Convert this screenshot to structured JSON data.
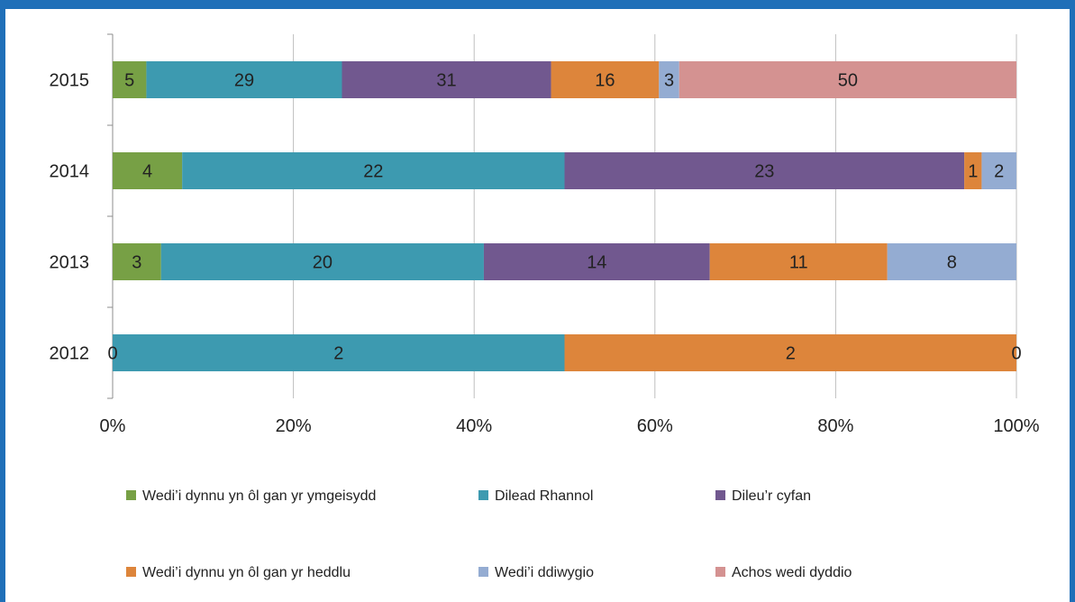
{
  "chart_data": {
    "type": "bar",
    "orientation": "horizontal",
    "stacking": "percent",
    "title": "",
    "xlabel": "",
    "ylabel": "",
    "categories": [
      "2012",
      "2013",
      "2014",
      "2015"
    ],
    "xlim": [
      0,
      100
    ],
    "x_ticks": [
      "0%",
      "20%",
      "40%",
      "60%",
      "80%",
      "100%"
    ],
    "grid": "vertical",
    "legend_position": "bottom",
    "data_labels": true,
    "series": [
      {
        "name": "Wedi’i dynnu yn ôl gan yr ymgeisydd",
        "color": "#77a045",
        "values": [
          0,
          3,
          4,
          5
        ]
      },
      {
        "name": "Dilead Rhannol",
        "color": "#3d9ab0",
        "values": [
          2,
          20,
          22,
          29
        ]
      },
      {
        "name": "Dileu’r cyfan",
        "color": "#71588f",
        "values": [
          null,
          14,
          23,
          31
        ]
      },
      {
        "name": "Wedi’i dynnu yn ôl gan yr heddlu",
        "color": "#dd853b",
        "values": [
          2,
          11,
          1,
          16
        ]
      },
      {
        "name": "Wedi’i ddiwygio",
        "color": "#94acd2",
        "values": [
          0,
          8,
          2,
          3
        ]
      },
      {
        "name": "Achos wedi dyddio",
        "color": "#d49291",
        "values": [
          null,
          null,
          null,
          50
        ]
      }
    ]
  }
}
